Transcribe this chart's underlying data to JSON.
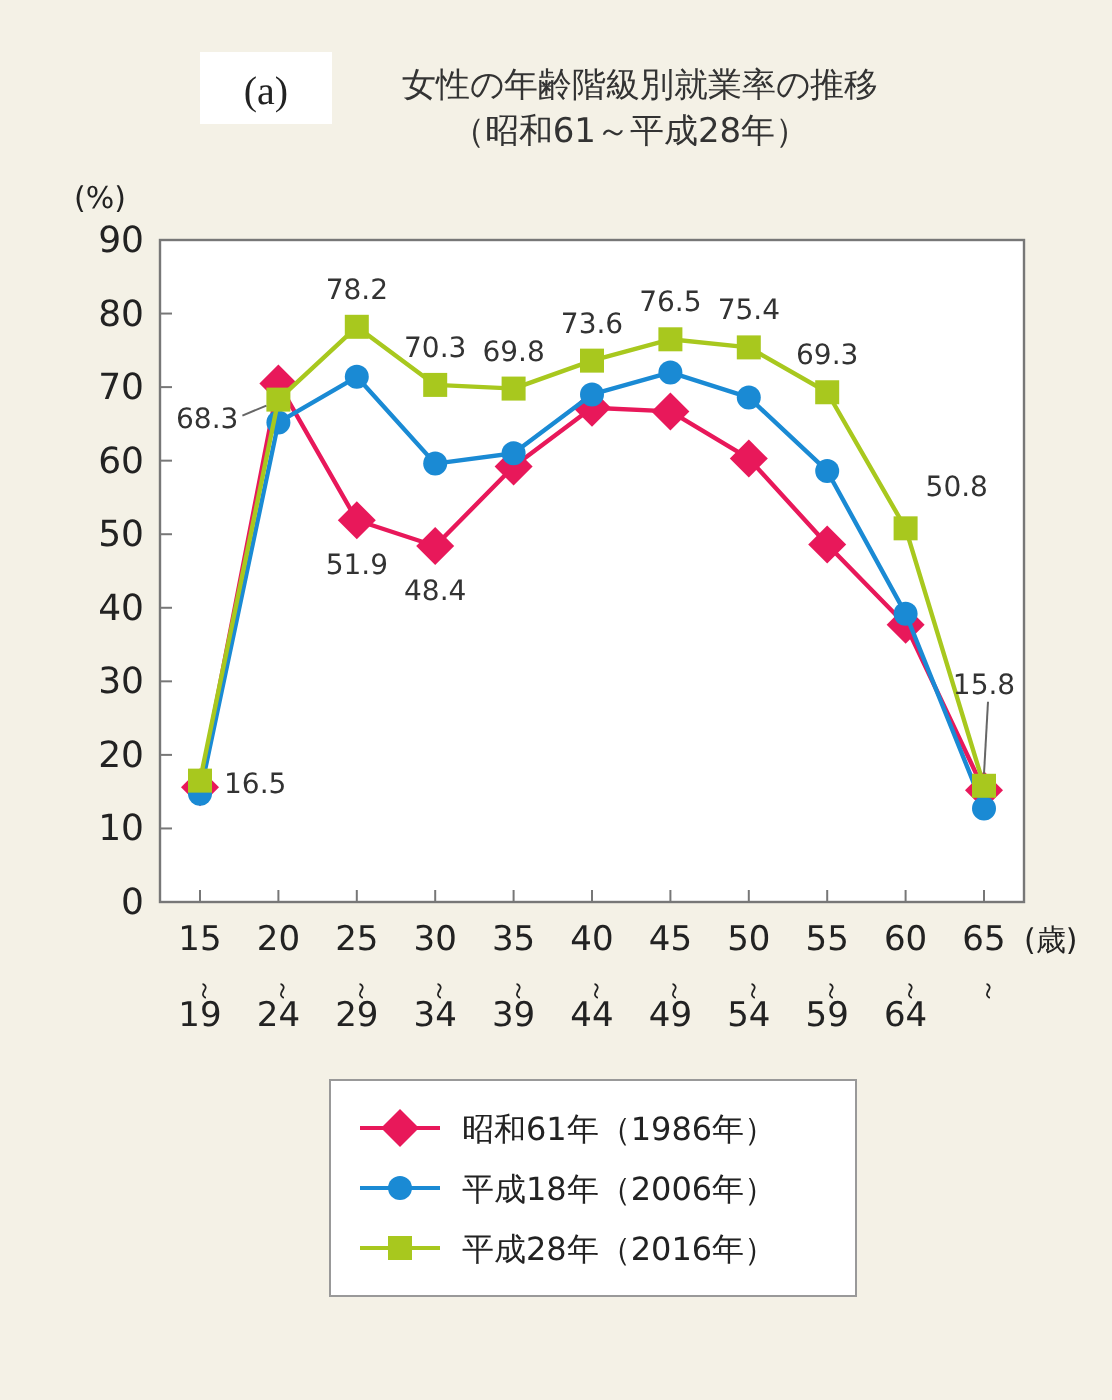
{
  "chart_data": {
    "type": "line",
    "title": "女性の年齢階級別就業率の推移",
    "subtitle": "（昭和61～平成28年）",
    "annotations": [
      "(a)"
    ],
    "ylabel": "(%)",
    "xlabel": "(歳)",
    "categories": [
      "15～19",
      "20～24",
      "25～29",
      "30～34",
      "35～39",
      "40～44",
      "45～49",
      "50～54",
      "55～59",
      "60～64",
      "65～"
    ],
    "ylim": [
      0,
      90
    ],
    "yticks": [
      0,
      10,
      20,
      30,
      40,
      50,
      60,
      70,
      80,
      90
    ],
    "grid": false,
    "legend": "bottom",
    "series": [
      {
        "name": "昭和61年（1986年）",
        "color": "#e8185a",
        "marker": "diamond",
        "values": [
          15.6,
          70.5,
          51.9,
          48.4,
          59.2,
          67.2,
          66.7,
          60.3,
          48.6,
          37.7,
          15.2
        ],
        "value_labels": [
          null,
          null,
          "51.9",
          "48.4",
          null,
          null,
          null,
          null,
          null,
          null,
          null
        ]
      },
      {
        "name": "平成18年（2006年）",
        "color": "#1a8ad4",
        "marker": "circle",
        "values": [
          14.7,
          65.2,
          71.4,
          59.6,
          61.0,
          69.0,
          72.0,
          68.6,
          58.6,
          39.2,
          12.7
        ]
      },
      {
        "name": "平成28年（2016年）",
        "color": "#a8c81e",
        "marker": "square",
        "values": [
          16.5,
          68.3,
          78.2,
          70.3,
          69.8,
          73.6,
          76.5,
          75.4,
          69.3,
          50.8,
          15.8
        ],
        "value_labels": [
          "16.5",
          "68.3",
          "78.2",
          "70.3",
          "69.8",
          "73.6",
          "76.5",
          "75.4",
          "69.3",
          "50.8",
          "15.8"
        ]
      }
    ]
  }
}
